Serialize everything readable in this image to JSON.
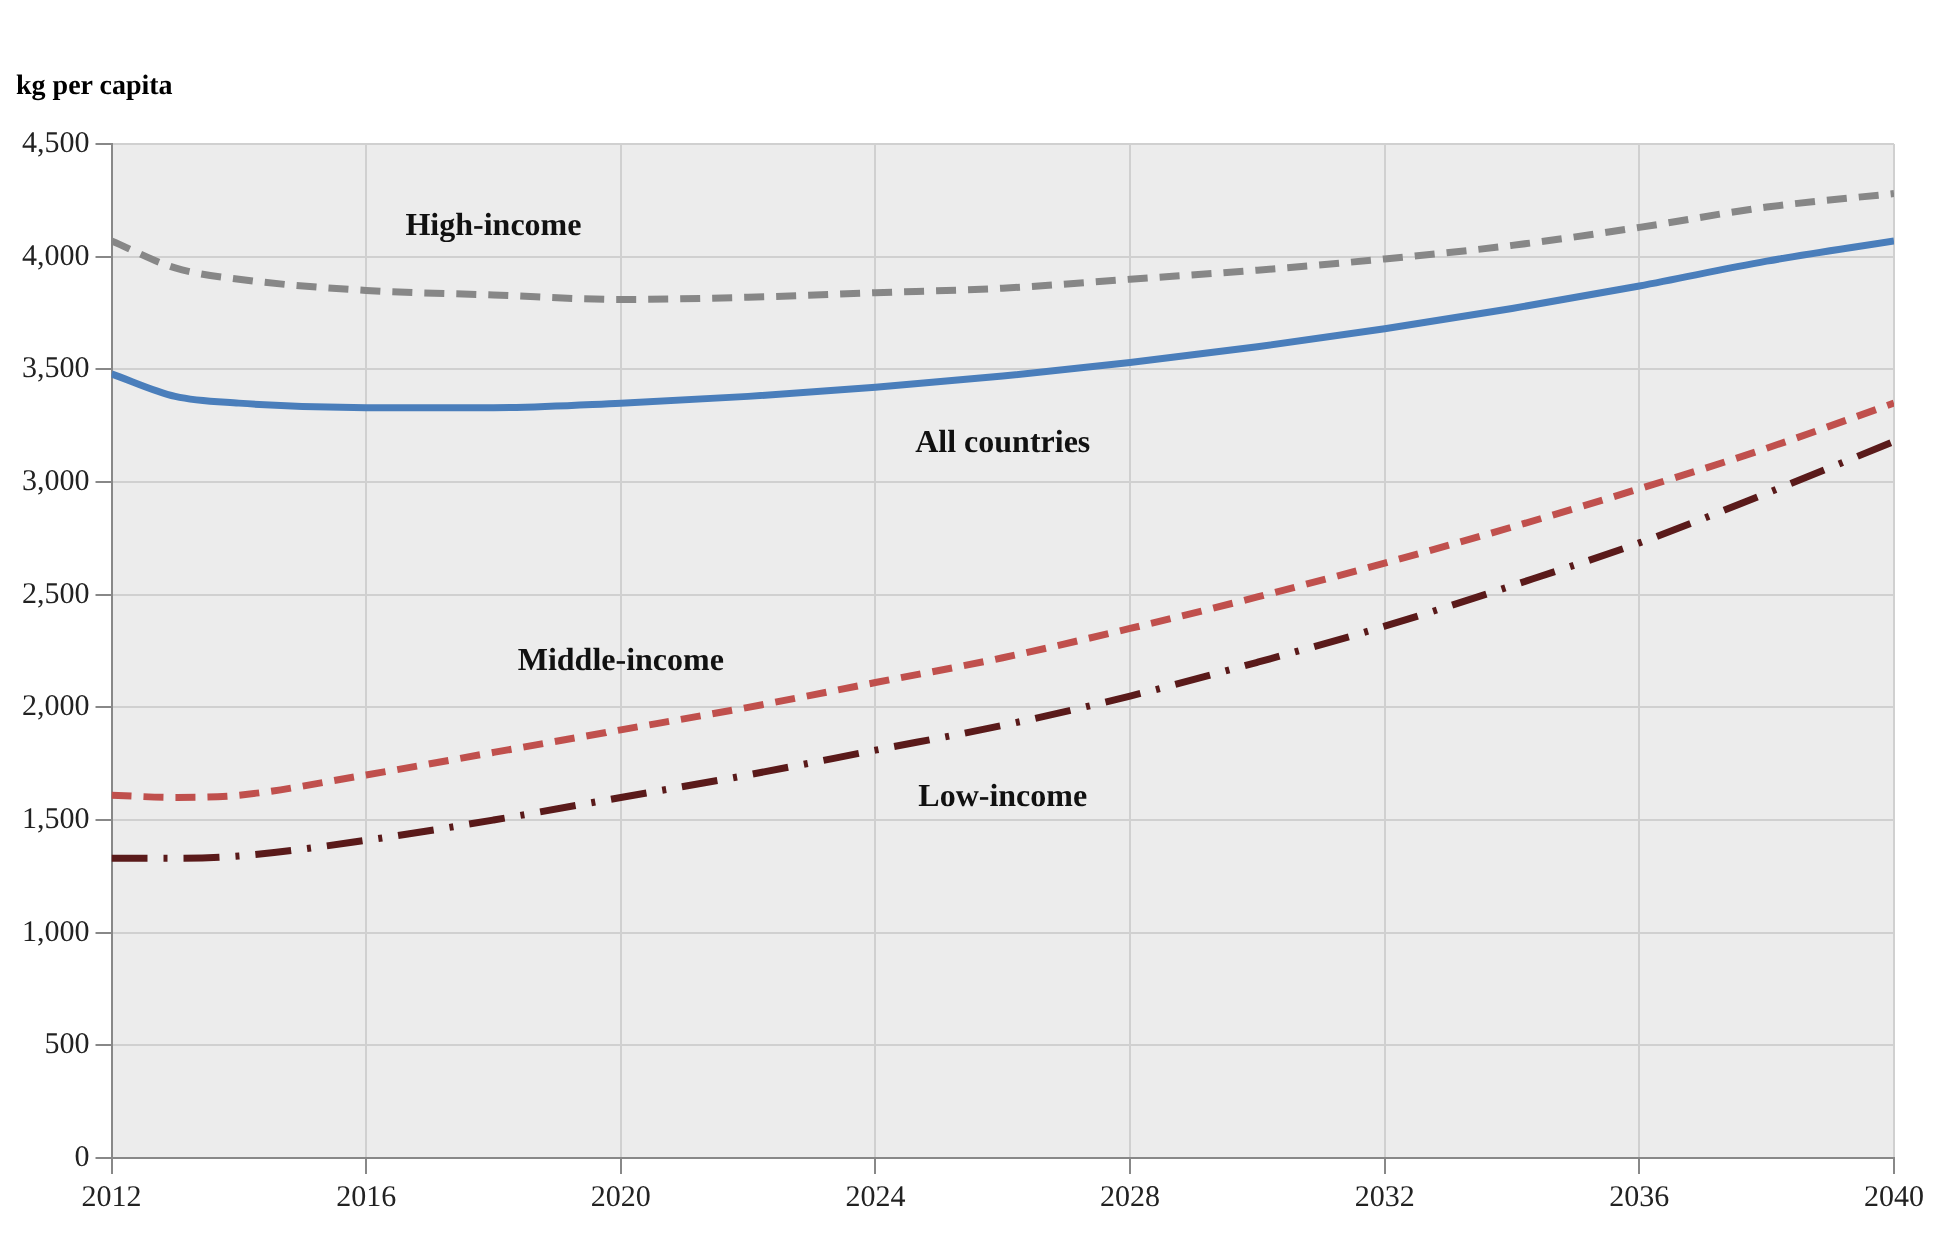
{
  "chart_data": {
    "type": "line",
    "ylabel": "kg per capita",
    "x": [
      2012,
      2013,
      2014,
      2016,
      2018,
      2020,
      2022,
      2024,
      2026,
      2028,
      2030,
      2032,
      2034,
      2036,
      2038,
      2040
    ],
    "series": [
      {
        "name": "High-income",
        "color": "#878787",
        "line_style": "dashed",
        "values": [
          4070,
          3950,
          3900,
          3850,
          3830,
          3810,
          3820,
          3840,
          3860,
          3900,
          3940,
          3990,
          4050,
          4130,
          4220,
          4280
        ]
      },
      {
        "name": "All countries",
        "color": "#4a7ebb",
        "line_style": "solid",
        "values": [
          3480,
          3380,
          3350,
          3330,
          3330,
          3350,
          3380,
          3420,
          3470,
          3530,
          3600,
          3680,
          3770,
          3870,
          3980,
          4070
        ]
      },
      {
        "name": "Middle-income",
        "color": "#c0504d",
        "line_style": "dashed",
        "values": [
          1610,
          1600,
          1610,
          1700,
          1800,
          1900,
          2000,
          2110,
          2220,
          2350,
          2490,
          2640,
          2800,
          2970,
          3150,
          3350
        ]
      },
      {
        "name": "Low-income",
        "color": "#5a1a1a",
        "line_style": "dashdot",
        "values": [
          1330,
          1330,
          1340,
          1410,
          1500,
          1600,
          1700,
          1810,
          1920,
          2050,
          2200,
          2360,
          2540,
          2730,
          2950,
          3180
        ]
      }
    ],
    "xlim": [
      2012,
      2040
    ],
    "xticks": [
      2012,
      2016,
      2020,
      2024,
      2028,
      2032,
      2036,
      2040
    ],
    "ylim": [
      0,
      4500
    ],
    "yticks": [
      0,
      500,
      {
        "value": 1000,
        "label": "1,000"
      },
      {
        "value": 1500,
        "label": "1,500"
      },
      {
        "value": 2000,
        "label": "2,000"
      },
      {
        "value": 2500,
        "label": "2,500"
      },
      {
        "value": 3000,
        "label": "3,000"
      },
      {
        "value": 3500,
        "label": "3,500"
      },
      {
        "value": 4000,
        "label": "4,000"
      },
      {
        "value": 4500,
        "label": "4,500"
      }
    ],
    "grid": true,
    "legend": false,
    "marker": "none"
  }
}
